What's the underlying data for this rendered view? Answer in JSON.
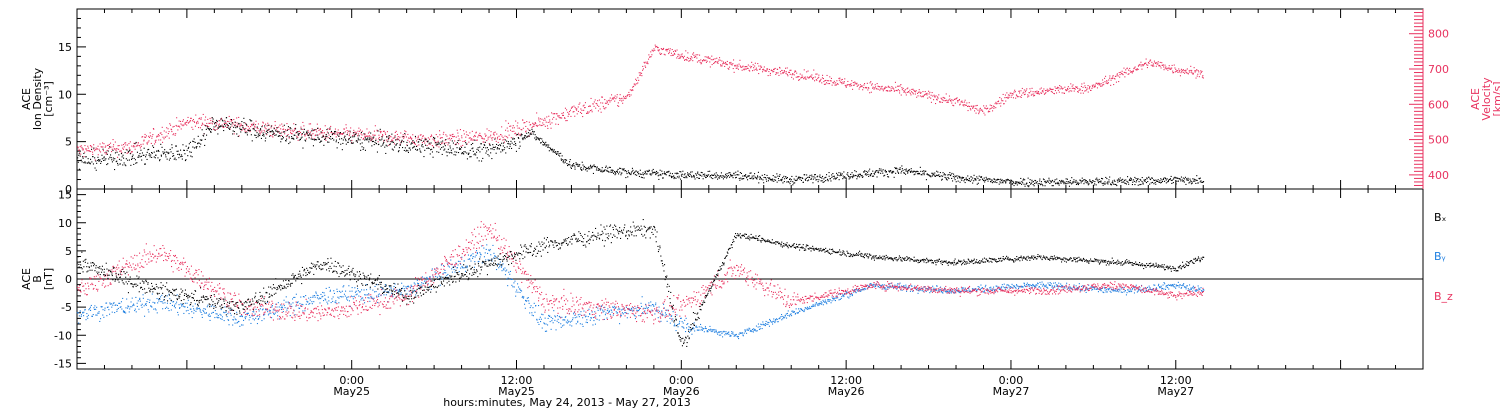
{
  "xaxis": {
    "title": "hours:minutes, May 24, 2013 - May 27, 2013",
    "ticks": [
      {
        "h": 24,
        "time": "0:00",
        "date": "May25"
      },
      {
        "h": 36,
        "time": "12:00",
        "date": "May25"
      },
      {
        "h": 48,
        "time": "0:00",
        "date": "May26"
      },
      {
        "h": 60,
        "time": "12:00",
        "date": "May26"
      },
      {
        "h": 72,
        "time": "0:00",
        "date": "May27"
      },
      {
        "h": 84,
        "time": "12:00",
        "date": "May27"
      }
    ]
  },
  "panel1": {
    "left_label_lines": [
      "ACE",
      "Ion Density",
      "[cm⁻³]"
    ],
    "right_label_lines": [
      "ACE",
      "Velocity",
      "[km/s]"
    ],
    "left_ticks": [
      "0",
      "5",
      "10",
      "15"
    ],
    "right_ticks": [
      "400",
      "500",
      "600",
      "700",
      "800"
    ]
  },
  "panel2": {
    "left_label_lines": [
      "ACE",
      "B",
      "[nT]"
    ],
    "left_ticks": [
      "-15",
      "-10",
      "-5",
      "0",
      "5",
      "10",
      "15"
    ],
    "legend": [
      {
        "label": "Bₓ",
        "color": "#000000"
      },
      {
        "label": "Bᵧ",
        "color": "#1f7fe0"
      },
      {
        "label": "B_z",
        "color": "#e8325f"
      }
    ]
  },
  "colors": {
    "density": "#000000",
    "velocity": "#e8325f",
    "bx": "#000000",
    "by": "#1f7fe0",
    "bz": "#e8325f"
  },
  "chart_data": [
    {
      "type": "scatter",
      "title": "",
      "xlabel": "hours:minutes, May 24, 2013 - May 27, 2013",
      "ylabel": "ACE Ion Density [cm⁻³]",
      "y2label": "ACE Velocity [km/s]",
      "xlim": [
        "2013-05-24T04:00",
        "2013-05-28T06:00"
      ],
      "ylim": [
        0,
        19
      ],
      "y2lim": [
        360,
        870
      ],
      "series": [
        {
          "name": "Ion Density",
          "axis": "left",
          "x": [
            "2013-05-24T04:00",
            "2013-05-24T08:00",
            "2013-05-24T12:00",
            "2013-05-24T14:00",
            "2013-05-24T18:00",
            "2013-05-24T22:00",
            "2013-05-25T02:00",
            "2013-05-25T06:00",
            "2013-05-25T10:00",
            "2013-05-25T13:00",
            "2013-05-25T16:00",
            "2013-05-25T20:00",
            "2013-05-26T00:00",
            "2013-05-26T04:00",
            "2013-05-26T08:00",
            "2013-05-26T12:00",
            "2013-05-26T16:00",
            "2013-05-26T20:00",
            "2013-05-27T00:00",
            "2013-05-27T06:00",
            "2013-05-27T12:00",
            "2013-05-27T14:00"
          ],
          "y": [
            3,
            3.5,
            4,
            7,
            6,
            5.5,
            5,
            4.5,
            4,
            6,
            2.5,
            1.8,
            1.5,
            1.5,
            1,
            1.5,
            2,
            1.2,
            0.8,
            0.8,
            1,
            1
          ]
        },
        {
          "name": "Velocity",
          "axis": "right",
          "x": [
            "2013-05-24T04:00",
            "2013-05-24T08:00",
            "2013-05-24T12:00",
            "2013-05-24T14:00",
            "2013-05-24T18:00",
            "2013-05-24T22:00",
            "2013-05-25T02:00",
            "2013-05-25T06:00",
            "2013-05-25T10:00",
            "2013-05-25T13:00",
            "2013-05-25T16:00",
            "2013-05-25T20:00",
            "2013-05-25T22:00",
            "2013-05-26T00:00",
            "2013-05-26T04:00",
            "2013-05-26T08:00",
            "2013-05-26T12:00",
            "2013-05-26T16:00",
            "2013-05-26T20:00",
            "2013-05-26T22:00",
            "2013-05-27T00:00",
            "2013-05-27T06:00",
            "2013-05-27T10:00",
            "2013-05-27T12:00",
            "2013-05-27T14:00"
          ],
          "y": [
            470,
            480,
            550,
            550,
            530,
            520,
            510,
            500,
            510,
            540,
            580,
            620,
            760,
            740,
            710,
            690,
            660,
            640,
            610,
            580,
            630,
            650,
            720,
            700,
            690
          ]
        }
      ]
    },
    {
      "type": "scatter",
      "title": "",
      "xlabel": "hours:minutes, May 24, 2013 - May 27, 2013",
      "ylabel": "ACE B [nT]",
      "xlim": [
        "2013-05-24T04:00",
        "2013-05-28T06:00"
      ],
      "ylim": [
        -16,
        16
      ],
      "series": [
        {
          "name": "Bₓ",
          "x": [
            "2013-05-24T04:00",
            "2013-05-24T10:00",
            "2013-05-24T16:00",
            "2013-05-24T22:00",
            "2013-05-25T04:00",
            "2013-05-25T10:00",
            "2013-05-25T14:00",
            "2013-05-25T18:00",
            "2013-05-25T22:00",
            "2013-05-26T00:00",
            "2013-05-26T04:00",
            "2013-05-26T08:00",
            "2013-05-26T14:00",
            "2013-05-26T20:00",
            "2013-05-27T02:00",
            "2013-05-27T08:00",
            "2013-05-27T12:00",
            "2013-05-27T14:00"
          ],
          "y": [
            3,
            -2,
            -5,
            3,
            -3,
            3,
            6,
            8,
            9,
            -12,
            8,
            6,
            4,
            3,
            4,
            3,
            2,
            4
          ]
        },
        {
          "name": "Bᵧ",
          "x": [
            "2013-05-24T04:00",
            "2013-05-24T10:00",
            "2013-05-24T16:00",
            "2013-05-24T22:00",
            "2013-05-25T04:00",
            "2013-05-25T10:00",
            "2013-05-25T14:00",
            "2013-05-25T18:00",
            "2013-05-25T22:00",
            "2013-05-26T00:00",
            "2013-05-26T04:00",
            "2013-05-26T08:00",
            "2013-05-26T14:00",
            "2013-05-26T20:00",
            "2013-05-27T02:00",
            "2013-05-27T08:00",
            "2013-05-27T12:00",
            "2013-05-27T14:00"
          ],
          "y": [
            -6,
            -4,
            -7,
            -3,
            -2,
            5,
            -8,
            -6,
            -5,
            -8,
            -10,
            -6,
            -1,
            -2,
            -1,
            -2,
            -1,
            -2
          ]
        },
        {
          "name": "B_z",
          "x": [
            "2013-05-24T04:00",
            "2013-05-24T10:00",
            "2013-05-24T16:00",
            "2013-05-24T22:00",
            "2013-05-25T04:00",
            "2013-05-25T10:00",
            "2013-05-25T14:00",
            "2013-05-25T18:00",
            "2013-05-25T22:00",
            "2013-05-26T00:00",
            "2013-05-26T04:00",
            "2013-05-26T08:00",
            "2013-05-26T14:00",
            "2013-05-26T20:00",
            "2013-05-27T02:00",
            "2013-05-27T08:00",
            "2013-05-27T12:00",
            "2013-05-27T14:00"
          ],
          "y": [
            -2,
            5,
            -5,
            -6,
            -3,
            9,
            -4,
            -5,
            -6,
            -5,
            2,
            -4,
            -1,
            -2,
            -2,
            -1,
            -3,
            -2
          ]
        }
      ]
    }
  ]
}
